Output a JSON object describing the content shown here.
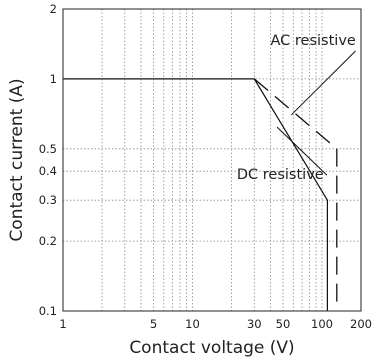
{
  "chart_data": {
    "type": "line",
    "xlabel": "Contact voltage (V)",
    "ylabel": "Contact current (A)",
    "x_scale": "log",
    "y_scale": "log",
    "xlim": [
      1,
      200
    ],
    "ylim": [
      0.1,
      2
    ],
    "x_tick_labels": [
      "1",
      "5",
      "10",
      "30",
      "50",
      "100",
      "200"
    ],
    "y_tick_labels": [
      "0.1",
      "0.2",
      "0.3",
      "0.4",
      "0.5",
      "1",
      "2"
    ],
    "grid": true,
    "series": [
      {
        "style": "solid",
        "points": [
          [
            1,
            1
          ],
          [
            30,
            1
          ],
          [
            110,
            0.3
          ],
          [
            110,
            0.1
          ]
        ]
      },
      {
        "style": "dashed",
        "points": [
          [
            30,
            1
          ],
          [
            130,
            0.5
          ],
          [
            130,
            0.1
          ]
        ]
      }
    ],
    "annotations": [
      {
        "text": "AC resistive",
        "anchor": [
          58,
          0.7
        ],
        "label_at": [
          40,
          1.4
        ]
      },
      {
        "text": "DC resistive",
        "anchor": [
          45,
          0.62
        ],
        "label_at": [
          22,
          0.37
        ]
      }
    ]
  }
}
